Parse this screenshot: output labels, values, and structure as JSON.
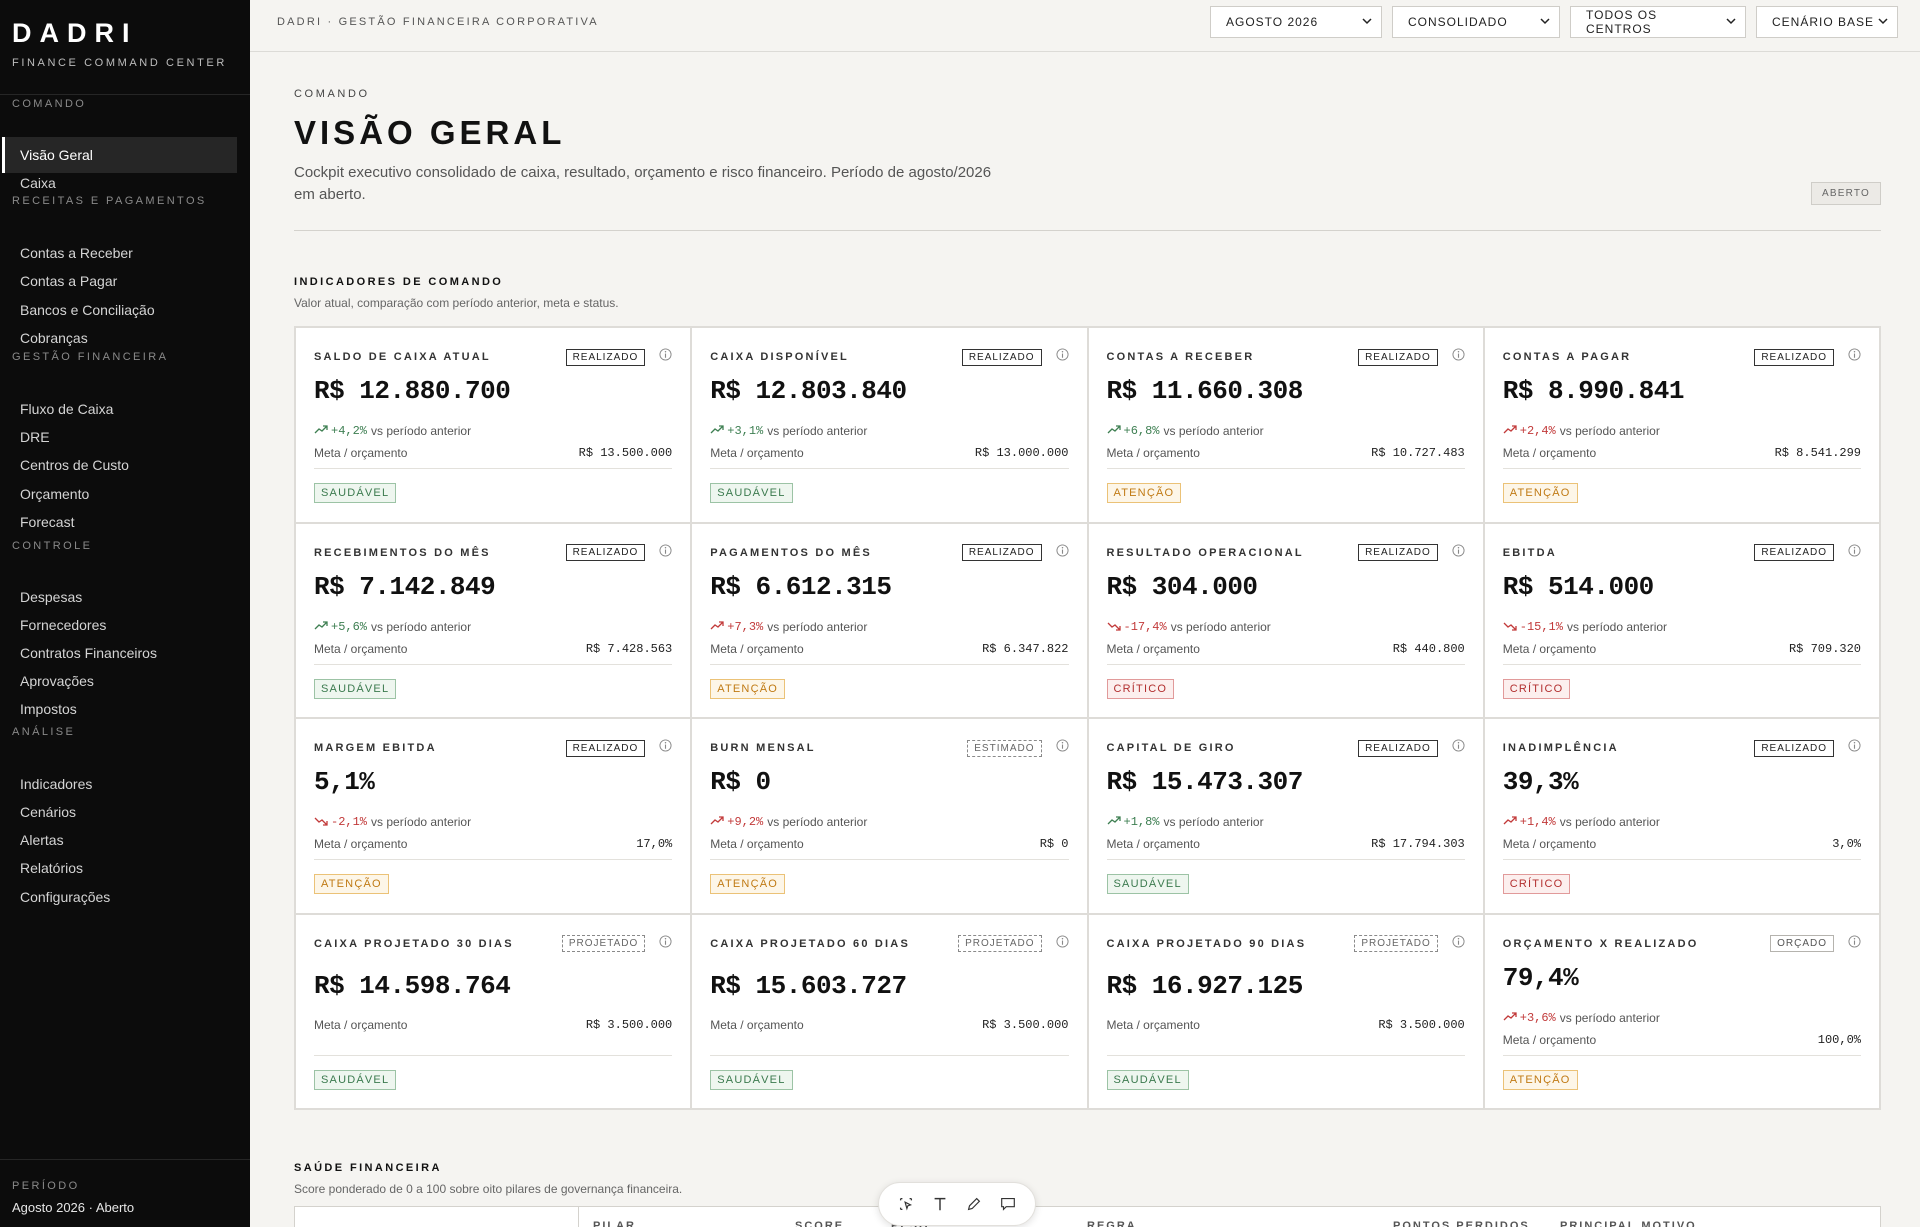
{
  "brand": {
    "name": "DADRI",
    "subtitle": "FINANCE COMMAND CENTER"
  },
  "sidebar": {
    "sections": [
      {
        "title": "COMANDO",
        "items": [
          {
            "label": "Visão Geral",
            "active": true
          },
          {
            "label": "Caixa"
          }
        ]
      },
      {
        "title": "RECEITAS E PAGAMENTOS",
        "items": [
          {
            "label": "Contas a Receber"
          },
          {
            "label": "Contas a Pagar"
          },
          {
            "label": "Bancos e Conciliação"
          },
          {
            "label": "Cobranças"
          }
        ]
      },
      {
        "title": "GESTÃO FINANCEIRA",
        "items": [
          {
            "label": "Fluxo de Caixa"
          },
          {
            "label": "DRE"
          },
          {
            "label": "Centros de Custo"
          },
          {
            "label": "Orçamento"
          },
          {
            "label": "Forecast"
          }
        ]
      },
      {
        "title": "CONTROLE",
        "items": [
          {
            "label": "Despesas"
          },
          {
            "label": "Fornecedores"
          },
          {
            "label": "Contratos Financeiros"
          },
          {
            "label": "Aprovações"
          },
          {
            "label": "Impostos"
          }
        ]
      },
      {
        "title": "ANÁLISE",
        "items": [
          {
            "label": "Indicadores"
          },
          {
            "label": "Cenários"
          },
          {
            "label": "Alertas"
          },
          {
            "label": "Relatórios"
          },
          {
            "label": "Configurações"
          }
        ]
      }
    ],
    "period_label": "PERÍODO",
    "period_value": "Agosto 2026 · Aberto"
  },
  "topbar": {
    "title": "DADRI · GESTÃO FINANCEIRA CORPORATIVA",
    "selects": [
      "AGOSTO 2026",
      "CONSOLIDADO",
      "TODOS OS CENTROS",
      "CENÁRIO BASE"
    ]
  },
  "header": {
    "eyebrow": "COMANDO",
    "title": "VISÃO GERAL",
    "description": "Cockpit executivo consolidado de caixa, resultado, orçamento e risco financeiro. Período de agosto/2026 em aberto.",
    "status": "ABERTO"
  },
  "indicators": {
    "title": "INDICADORES DE COMANDO",
    "subtitle": "Valor atual, comparação com período anterior, meta e status.",
    "meta_label": "Meta / orçamento",
    "delta_suffix": "vs período anterior",
    "cards": [
      {
        "label": "SALDO DE CAIXA ATUAL",
        "badge": "REALIZADO",
        "value": "R$ 12.880.700",
        "delta": "+4,2%",
        "trend": "good",
        "meta": "R$ 13.500.000",
        "status": "SAUDÁVEL",
        "level": "healthy"
      },
      {
        "label": "CAIXA DISPONÍVEL",
        "badge": "REALIZADO",
        "value": "R$ 12.803.840",
        "delta": "+3,1%",
        "trend": "good",
        "meta": "R$ 13.000.000",
        "status": "SAUDÁVEL",
        "level": "healthy"
      },
      {
        "label": "CONTAS A RECEBER",
        "badge": "REALIZADO",
        "value": "R$ 11.660.308",
        "delta": "+6,8%",
        "trend": "good",
        "meta": "R$ 10.727.483",
        "status": "ATENÇÃO",
        "level": "warn"
      },
      {
        "label": "CONTAS A PAGAR",
        "badge": "REALIZADO",
        "value": "R$ 8.990.841",
        "delta": "+2,4%",
        "trend": "bad-up",
        "meta": "R$ 8.541.299",
        "status": "ATENÇÃO",
        "level": "warn"
      },
      {
        "label": "RECEBIMENTOS DO MÊS",
        "badge": "REALIZADO",
        "value": "R$ 7.142.849",
        "delta": "+5,6%",
        "trend": "good",
        "meta": "R$ 7.428.563",
        "status": "SAUDÁVEL",
        "level": "healthy"
      },
      {
        "label": "PAGAMENTOS DO MÊS",
        "badge": "REALIZADO",
        "value": "R$ 6.612.315",
        "delta": "+7,3%",
        "trend": "bad-up",
        "meta": "R$ 6.347.822",
        "status": "ATENÇÃO",
        "level": "warn"
      },
      {
        "label": "RESULTADO OPERACIONAL",
        "badge": "REALIZADO",
        "value": "R$ 304.000",
        "delta": "-17,4%",
        "trend": "bad-down",
        "meta": "R$ 440.800",
        "status": "CRÍTICO",
        "level": "crit"
      },
      {
        "label": "EBITDA",
        "badge": "REALIZADO",
        "value": "R$ 514.000",
        "delta": "-15,1%",
        "trend": "bad-down",
        "meta": "R$ 709.320",
        "status": "CRÍTICO",
        "level": "crit"
      },
      {
        "label": "MARGEM EBITDA",
        "badge": "REALIZADO",
        "value": "5,1%",
        "delta": "-2,1%",
        "trend": "bad-down",
        "meta": "17,0%",
        "status": "ATENÇÃO",
        "level": "warn"
      },
      {
        "label": "BURN MENSAL",
        "badge": "ESTIMADO",
        "badge_style": "dashed",
        "value": "R$ 0",
        "delta": "+9,2%",
        "trend": "bad-up",
        "meta": "R$ 0",
        "status": "ATENÇÃO",
        "level": "warn"
      },
      {
        "label": "CAPITAL DE GIRO",
        "badge": "REALIZADO",
        "value": "R$ 15.473.307",
        "delta": "+1,8%",
        "trend": "good",
        "meta": "R$ 17.794.303",
        "status": "SAUDÁVEL",
        "level": "healthy"
      },
      {
        "label": "INADIMPLÊNCIA",
        "badge": "REALIZADO",
        "value": "39,3%",
        "delta": "+1,4%",
        "trend": "bad-up",
        "meta": "3,0%",
        "status": "CRÍTICO",
        "level": "crit"
      },
      {
        "label": "CAIXA PROJETADO 30 DIAS",
        "badge": "PROJETADO",
        "badge_style": "dashed",
        "value": "R$ 14.598.764",
        "meta": "R$ 3.500.000",
        "status": "SAUDÁVEL",
        "level": "healthy",
        "projection": true
      },
      {
        "label": "CAIXA PROJETADO 60 DIAS",
        "badge": "PROJETADO",
        "badge_style": "dashed",
        "value": "R$ 15.603.727",
        "meta": "R$ 3.500.000",
        "status": "SAUDÁVEL",
        "level": "healthy",
        "projection": true
      },
      {
        "label": "CAIXA PROJETADO 90 DIAS",
        "badge": "PROJETADO",
        "badge_style": "dashed",
        "value": "R$ 16.927.125",
        "meta": "R$ 3.500.000",
        "status": "SAUDÁVEL",
        "level": "healthy",
        "projection": true
      },
      {
        "label": "ORÇAMENTO X REALIZADO",
        "badge": "ORÇADO",
        "badge_style": "muted",
        "value": "79,4%",
        "delta": "+3,6%",
        "trend": "bad-up",
        "meta": "100,0%",
        "status": "ATENÇÃO",
        "level": "warn"
      }
    ]
  },
  "health": {
    "title": "SAÚDE FINANCEIRA",
    "subtitle": "Score ponderado de 0 a 100 sobre oito pilares de governança financeira.",
    "columns": [
      "PILAR",
      "SCORE",
      "PESO",
      "REGRA",
      "PONTOS PERDIDOS",
      "PRINCIPAL MOTIVO"
    ]
  },
  "toolbar": {
    "tools": [
      "select-icon",
      "text-icon",
      "pen-icon",
      "comment-icon"
    ]
  }
}
